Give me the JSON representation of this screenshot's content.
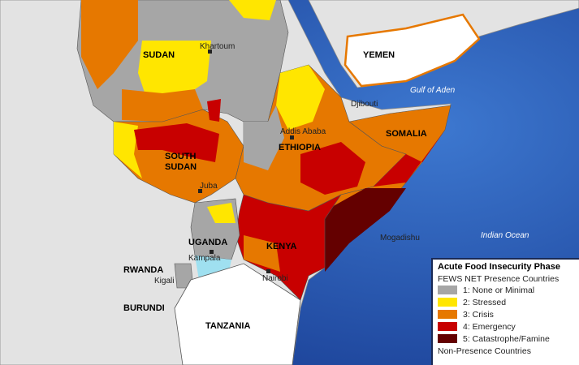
{
  "countries": {
    "sudan": "SUDAN",
    "south_sudan_1": "SOUTH",
    "south_sudan_2": "SUDAN",
    "ethiopia": "ETHIOPIA",
    "somalia": "SOMALIA",
    "kenya": "KENYA",
    "uganda": "UGANDA",
    "rwanda": "RWANDA",
    "burundi": "BURUNDI",
    "tanzania": "TANZANIA",
    "yemen": "YEMEN"
  },
  "cities": {
    "khartoum": "Khartoum",
    "addis_ababa": "Addis Ababa",
    "djibouti": "Djibouti",
    "juba": "Juba",
    "mogadishu": "Mogadishu",
    "kampala": "Kampala",
    "nairobi": "Nairobi",
    "kigali": "Kigali"
  },
  "water": {
    "gulf_of_aden": "Gulf of Aden",
    "indian_ocean": "Indian Ocean"
  },
  "legend": {
    "title": "Acute Food Insecurity Phase",
    "presence_heading": "FEWS NET Presence Countries",
    "phases": [
      {
        "label": "1: None or Minimal",
        "color": "#a6a6a6"
      },
      {
        "label": "2: Stressed",
        "color": "#ffe600"
      },
      {
        "label": "3: Crisis",
        "color": "#e67800"
      },
      {
        "label": "4: Emergency",
        "color": "#c80000"
      },
      {
        "label": "5: Catastrophe/Famine",
        "color": "#640000"
      }
    ],
    "non_presence_heading": "Non-Presence Countries"
  }
}
